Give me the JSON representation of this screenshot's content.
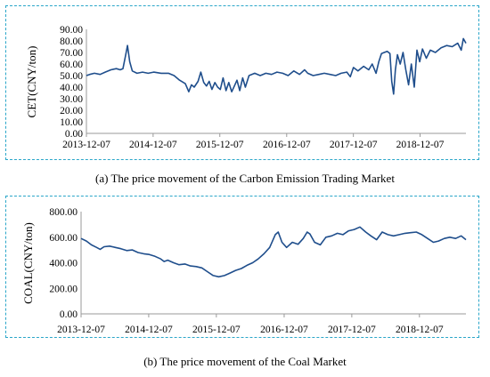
{
  "chart_data": [
    {
      "type": "line",
      "caption": "(a)  The price movement of the Carbon Emission Trading Market",
      "ylabel": "CET(CNY/ton)",
      "xlabel": "",
      "x_ticks": [
        "2013-12-07",
        "2014-12-07",
        "2015-12-07",
        "2016-12-07",
        "2017-12-07",
        "2018-12-07"
      ],
      "y_ticks": [
        "0.00",
        "10.00",
        "20.00",
        "30.00",
        "40.00",
        "50.00",
        "60.00",
        "70.00",
        "80.00",
        "90.00"
      ],
      "ylim": [
        0,
        90
      ],
      "x_range": [
        "2013-12-07",
        "2019-08-15"
      ],
      "grid": false,
      "color": "#1f4e8c",
      "series": [
        {
          "points": [
            [
              "2013-12-07",
              50
            ],
            [
              "2013-12-25",
              51
            ],
            [
              "2014-01-20",
              52
            ],
            [
              "2014-02-20",
              51
            ],
            [
              "2014-03-20",
              53
            ],
            [
              "2014-04-20",
              55
            ],
            [
              "2014-05-20",
              56
            ],
            [
              "2014-06-10",
              55
            ],
            [
              "2014-06-25",
              56
            ],
            [
              "2014-07-10",
              68
            ],
            [
              "2014-07-20",
              76
            ],
            [
              "2014-08-01",
              62
            ],
            [
              "2014-08-15",
              54
            ],
            [
              "2014-09-10",
              52
            ],
            [
              "2014-10-10",
              53
            ],
            [
              "2014-11-10",
              52
            ],
            [
              "2014-12-10",
              53
            ],
            [
              "2015-01-20",
              52
            ],
            [
              "2015-03-01",
              52
            ],
            [
              "2015-04-01",
              50
            ],
            [
              "2015-05-01",
              46
            ],
            [
              "2015-06-01",
              43
            ],
            [
              "2015-06-20",
              36
            ],
            [
              "2015-07-05",
              42
            ],
            [
              "2015-07-20",
              40
            ],
            [
              "2015-08-10",
              45
            ],
            [
              "2015-08-25",
              53
            ],
            [
              "2015-09-10",
              44
            ],
            [
              "2015-09-25",
              41
            ],
            [
              "2015-10-10",
              45
            ],
            [
              "2015-10-25",
              38
            ],
            [
              "2015-11-10",
              44
            ],
            [
              "2015-11-25",
              40
            ],
            [
              "2015-12-10",
              38
            ],
            [
              "2015-12-25",
              48
            ],
            [
              "2016-01-10",
              37
            ],
            [
              "2016-01-25",
              44
            ],
            [
              "2016-02-10",
              36
            ],
            [
              "2016-02-25",
              41
            ],
            [
              "2016-03-10",
              46
            ],
            [
              "2016-03-25",
              37
            ],
            [
              "2016-04-10",
              48
            ],
            [
              "2016-04-25",
              40
            ],
            [
              "2016-05-15",
              50
            ],
            [
              "2016-06-15",
              52
            ],
            [
              "2016-07-15",
              50
            ],
            [
              "2016-08-15",
              52
            ],
            [
              "2016-09-15",
              51
            ],
            [
              "2016-10-15",
              53
            ],
            [
              "2016-11-15",
              52
            ],
            [
              "2016-12-15",
              50
            ],
            [
              "2017-01-15",
              54
            ],
            [
              "2017-02-15",
              51
            ],
            [
              "2017-03-15",
              55
            ],
            [
              "2017-04-01",
              52
            ],
            [
              "2017-05-01",
              50
            ],
            [
              "2017-06-01",
              51
            ],
            [
              "2017-07-01",
              52
            ],
            [
              "2017-08-01",
              51
            ],
            [
              "2017-09-01",
              50
            ],
            [
              "2017-10-01",
              52
            ],
            [
              "2017-11-01",
              53
            ],
            [
              "2017-11-20",
              49
            ],
            [
              "2017-12-07",
              57
            ],
            [
              "2018-01-01",
              54
            ],
            [
              "2018-02-01",
              58
            ],
            [
              "2018-03-01",
              55
            ],
            [
              "2018-03-20",
              60
            ],
            [
              "2018-04-10",
              52
            ],
            [
              "2018-04-25",
              62
            ],
            [
              "2018-05-10",
              69
            ],
            [
              "2018-05-25",
              70
            ],
            [
              "2018-06-10",
              71
            ],
            [
              "2018-06-25",
              69
            ],
            [
              "2018-07-05",
              45
            ],
            [
              "2018-07-15",
              34
            ],
            [
              "2018-07-25",
              55
            ],
            [
              "2018-08-05",
              68
            ],
            [
              "2018-08-20",
              60
            ],
            [
              "2018-09-05",
              70
            ],
            [
              "2018-09-20",
              55
            ],
            [
              "2018-10-05",
              42
            ],
            [
              "2018-10-20",
              60
            ],
            [
              "2018-11-05",
              40
            ],
            [
              "2018-11-20",
              72
            ],
            [
              "2018-12-05",
              62
            ],
            [
              "2018-12-20",
              73
            ],
            [
              "2019-01-10",
              65
            ],
            [
              "2019-02-01",
              72
            ],
            [
              "2019-03-01",
              70
            ],
            [
              "2019-04-01",
              74
            ],
            [
              "2019-05-01",
              76
            ],
            [
              "2019-06-01",
              75
            ],
            [
              "2019-07-01",
              78
            ],
            [
              "2019-07-20",
              72
            ],
            [
              "2019-08-01",
              82
            ],
            [
              "2019-08-15",
              78
            ]
          ]
        }
      ]
    },
    {
      "type": "line",
      "caption": "(b)  The price movement of the Coal Market",
      "ylabel": "COAL(CNY/ton)",
      "xlabel": "",
      "x_ticks": [
        "2013-12-07",
        "2014-12-07",
        "2015-12-07",
        "2016-12-07",
        "2017-12-07",
        "2018-12-07"
      ],
      "y_ticks": [
        "0.00",
        "200.00",
        "400.00",
        "600.00",
        "800.00"
      ],
      "ylim": [
        0,
        800
      ],
      "x_range": [
        "2013-12-07",
        "2019-08-15"
      ],
      "grid": false,
      "color": "#1f4e8c",
      "series": [
        {
          "points": [
            [
              "2013-12-07",
              590
            ],
            [
              "2014-01-05",
              570
            ],
            [
              "2014-02-01",
              540
            ],
            [
              "2014-03-01",
              520
            ],
            [
              "2014-03-20",
              505
            ],
            [
              "2014-04-10",
              525
            ],
            [
              "2014-05-10",
              530
            ],
            [
              "2014-06-10",
              520
            ],
            [
              "2014-07-10",
              510
            ],
            [
              "2014-08-10",
              495
            ],
            [
              "2014-09-10",
              500
            ],
            [
              "2014-10-10",
              480
            ],
            [
              "2014-11-10",
              470
            ],
            [
              "2014-12-10",
              465
            ],
            [
              "2015-01-10",
              450
            ],
            [
              "2015-02-10",
              430
            ],
            [
              "2015-02-28",
              410
            ],
            [
              "2015-03-20",
              420
            ],
            [
              "2015-04-20",
              400
            ],
            [
              "2015-05-20",
              385
            ],
            [
              "2015-06-20",
              390
            ],
            [
              "2015-07-20",
              375
            ],
            [
              "2015-08-20",
              370
            ],
            [
              "2015-09-20",
              360
            ],
            [
              "2015-10-20",
              330
            ],
            [
              "2015-11-20",
              300
            ],
            [
              "2015-12-20",
              290
            ],
            [
              "2016-01-20",
              300
            ],
            [
              "2016-02-20",
              320
            ],
            [
              "2016-03-20",
              340
            ],
            [
              "2016-04-20",
              355
            ],
            [
              "2016-05-20",
              380
            ],
            [
              "2016-06-20",
              400
            ],
            [
              "2016-07-20",
              430
            ],
            [
              "2016-08-20",
              470
            ],
            [
              "2016-09-20",
              520
            ],
            [
              "2016-10-20",
              620
            ],
            [
              "2016-11-05",
              640
            ],
            [
              "2016-11-25",
              560
            ],
            [
              "2016-12-20",
              520
            ],
            [
              "2017-01-20",
              560
            ],
            [
              "2017-02-20",
              545
            ],
            [
              "2017-03-20",
              590
            ],
            [
              "2017-04-10",
              640
            ],
            [
              "2017-04-25",
              625
            ],
            [
              "2017-05-20",
              560
            ],
            [
              "2017-06-20",
              540
            ],
            [
              "2017-07-20",
              600
            ],
            [
              "2017-08-20",
              610
            ],
            [
              "2017-09-20",
              630
            ],
            [
              "2017-10-20",
              620
            ],
            [
              "2017-11-20",
              650
            ],
            [
              "2017-12-20",
              660
            ],
            [
              "2018-01-20",
              680
            ],
            [
              "2018-02-20",
              640
            ],
            [
              "2018-03-20",
              610
            ],
            [
              "2018-04-20",
              580
            ],
            [
              "2018-05-20",
              640
            ],
            [
              "2018-06-20",
              620
            ],
            [
              "2018-07-20",
              610
            ],
            [
              "2018-08-20",
              620
            ],
            [
              "2018-09-20",
              630
            ],
            [
              "2018-10-20",
              635
            ],
            [
              "2018-11-20",
              640
            ],
            [
              "2018-12-20",
              620
            ],
            [
              "2019-01-20",
              590
            ],
            [
              "2019-02-20",
              560
            ],
            [
              "2019-03-20",
              570
            ],
            [
              "2019-04-20",
              590
            ],
            [
              "2019-05-20",
              600
            ],
            [
              "2019-06-20",
              590
            ],
            [
              "2019-07-20",
              610
            ],
            [
              "2019-08-15",
              580
            ]
          ]
        }
      ]
    }
  ]
}
